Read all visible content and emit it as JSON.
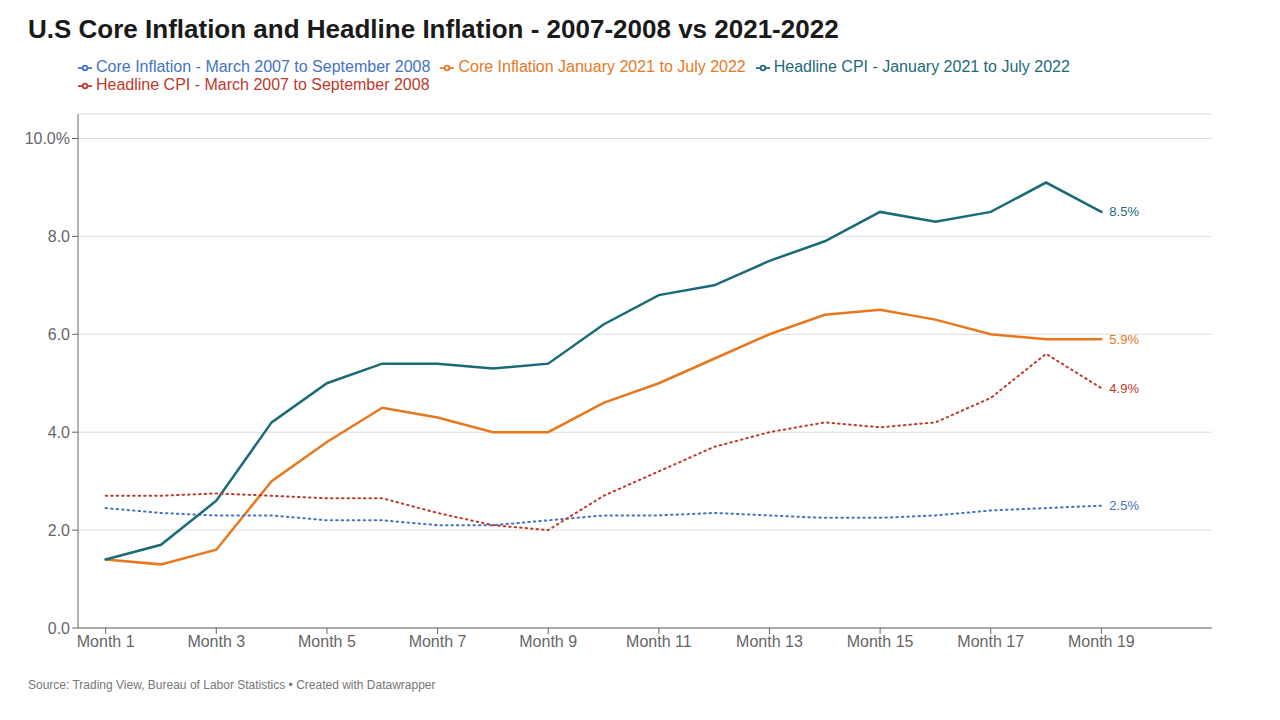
{
  "chart_data": {
    "type": "line",
    "title": "U.S Core Inflation and Headline Inflation - 2007-2008 vs 2021-2022",
    "annotations": [
      "Source: Trading View, Bureau of Labor Statistics • Created with Datawrapper"
    ],
    "x": [
      1,
      2,
      3,
      4,
      5,
      6,
      7,
      8,
      9,
      10,
      11,
      12,
      13,
      14,
      15,
      16,
      17,
      18,
      19
    ],
    "xlim": [
      0.5,
      21.0
    ],
    "xticks": [
      {
        "value": 1,
        "label": "Month 1"
      },
      {
        "value": 3,
        "label": "Month 3"
      },
      {
        "value": 5,
        "label": "Month 5"
      },
      {
        "value": 7,
        "label": "Month 7"
      },
      {
        "value": 9,
        "label": "Month 9"
      },
      {
        "value": 11,
        "label": "Month 11"
      },
      {
        "value": 13,
        "label": "Month 13"
      },
      {
        "value": 15,
        "label": "Month 15"
      },
      {
        "value": 17,
        "label": "Month 17"
      },
      {
        "value": 19,
        "label": "Month 19"
      }
    ],
    "ylim": [
      0.0,
      10.5
    ],
    "yticks": [
      {
        "value": 0,
        "label": "0.0"
      },
      {
        "value": 2,
        "label": "2.0"
      },
      {
        "value": 4,
        "label": "4.0"
      },
      {
        "value": 6,
        "label": "6.0"
      },
      {
        "value": 8,
        "label": "8.0"
      },
      {
        "value": 10,
        "label": "10.0%"
      }
    ],
    "grid": true,
    "legend": "top",
    "series": [
      {
        "name": "Core Inflation January 2021 to July 2022",
        "color": "#E8781E",
        "line_style": "solid",
        "values": [
          1.4,
          1.3,
          1.6,
          3.0,
          3.8,
          4.5,
          4.3,
          4.0,
          4.0,
          4.6,
          5.0,
          5.5,
          6.0,
          6.4,
          6.5,
          6.3,
          6.0,
          5.9,
          5.9
        ],
        "value_labels": [
          null,
          null,
          null,
          null,
          null,
          null,
          null,
          null,
          null,
          null,
          null,
          null,
          null,
          null,
          null,
          null,
          null,
          null,
          "5.9%"
        ]
      },
      {
        "name": "Core Inflation - March 2007 to September 2008",
        "color": "#4472C4",
        "line_style": "dotted",
        "values": [
          2.45,
          2.35,
          2.3,
          2.3,
          2.2,
          2.2,
          2.1,
          2.1,
          2.2,
          2.3,
          2.3,
          2.35,
          2.3,
          2.25,
          2.25,
          2.3,
          2.4,
          2.45,
          2.5
        ],
        "value_labels": [
          null,
          null,
          null,
          null,
          null,
          null,
          null,
          null,
          null,
          null,
          null,
          null,
          null,
          null,
          null,
          null,
          null,
          null,
          "2.5%"
        ]
      },
      {
        "name": "Headline CPI - January 2021 to July 2022",
        "color": "#1B6B77",
        "line_style": "solid",
        "values": [
          1.4,
          1.7,
          2.6,
          4.2,
          5.0,
          5.4,
          5.4,
          5.3,
          5.4,
          6.2,
          6.8,
          7.0,
          7.5,
          7.9,
          8.5,
          8.3,
          8.5,
          9.1,
          8.5
        ],
        "value_labels": [
          null,
          null,
          null,
          null,
          null,
          null,
          null,
          null,
          null,
          null,
          null,
          null,
          null,
          null,
          null,
          null,
          null,
          null,
          "8.5%"
        ]
      },
      {
        "name": "Headline CPI - March 2007 to September 2008",
        "color": "#C0392B",
        "line_style": "dotted",
        "values": [
          2.7,
          2.7,
          2.75,
          2.7,
          2.65,
          2.65,
          2.35,
          2.1,
          2.0,
          2.7,
          3.2,
          3.7,
          4.0,
          4.2,
          4.1,
          4.2,
          4.7,
          5.6,
          4.9
        ],
        "value_labels": [
          null,
          null,
          null,
          null,
          null,
          null,
          null,
          null,
          null,
          null,
          null,
          null,
          null,
          null,
          null,
          null,
          null,
          null,
          "4.9%"
        ]
      }
    ]
  }
}
